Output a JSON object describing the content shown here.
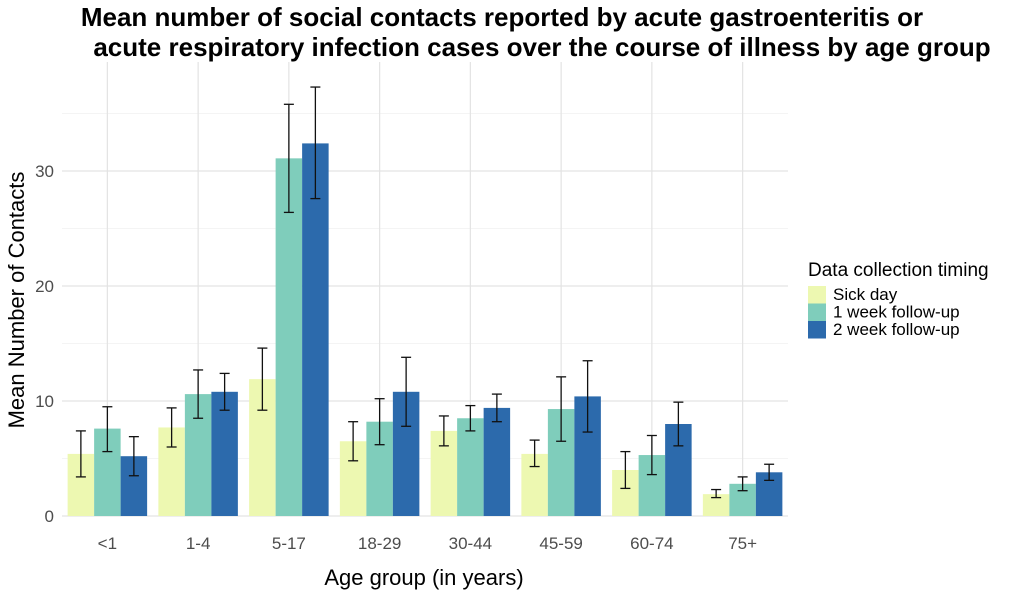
{
  "chart_data": {
    "type": "bar",
    "title": "Mean number of social contacts reported by acute gastroenteritis or acute respiratory infection cases over the course of illness by age group",
    "title_lines": [
      "Mean number of social contacts reported by acute gastroenteritis or",
      "acute respiratory infection cases over the course of illness by age group"
    ],
    "xlabel": "Age group (in years)",
    "ylabel": "Mean Number of Contacts",
    "categories": [
      "<1",
      "1-4",
      "5-17",
      "18-29",
      "30-44",
      "45-59",
      "60-74",
      "75+"
    ],
    "ylim": [
      0,
      38
    ],
    "yticks": [
      0,
      10,
      20,
      30
    ],
    "grid": true,
    "legend": {
      "title": "Data collection timing",
      "placement": "right"
    },
    "series": [
      {
        "name": "Sick day",
        "color": "#edf8b1",
        "values": [
          5.4,
          7.7,
          11.9,
          6.5,
          7.4,
          5.4,
          4.0,
          1.9
        ],
        "error_low": [
          3.4,
          6.0,
          9.2,
          4.8,
          6.1,
          4.3,
          2.4,
          1.6
        ],
        "error_high": [
          7.4,
          9.4,
          14.6,
          8.2,
          8.7,
          6.6,
          5.6,
          2.3
        ]
      },
      {
        "name": "1 week follow-up",
        "color": "#7fcdbb",
        "values": [
          7.6,
          10.6,
          31.1,
          8.2,
          8.5,
          9.3,
          5.3,
          2.8
        ],
        "error_low": [
          5.6,
          8.5,
          26.4,
          6.2,
          7.4,
          6.5,
          3.6,
          2.2
        ],
        "error_high": [
          9.5,
          12.7,
          35.8,
          10.2,
          9.6,
          12.1,
          7.0,
          3.4
        ]
      },
      {
        "name": "2 week follow-up",
        "color": "#2c6aac",
        "values": [
          5.2,
          10.8,
          32.4,
          10.8,
          9.4,
          10.4,
          8.0,
          3.8
        ],
        "error_low": [
          3.5,
          9.2,
          27.6,
          7.8,
          8.2,
          7.3,
          6.1,
          3.1
        ],
        "error_high": [
          6.9,
          12.4,
          37.3,
          13.8,
          10.6,
          13.5,
          9.9,
          4.5
        ]
      }
    ]
  }
}
